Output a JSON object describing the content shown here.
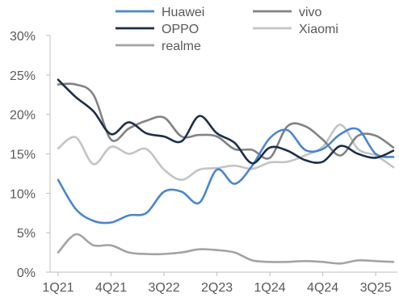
{
  "chart_data": {
    "type": "line",
    "title": "",
    "xlabel": "",
    "ylabel": "",
    "ylim": [
      0,
      30
    ],
    "yticks": [
      "0%",
      "5%",
      "10%",
      "15%",
      "20%",
      "25%",
      "30%"
    ],
    "ytick_values": [
      0,
      5,
      10,
      15,
      20,
      25,
      30
    ],
    "x": [
      "1Q21",
      "2Q21",
      "3Q21",
      "4Q21",
      "1Q22",
      "2Q22",
      "3Q22",
      "4Q22",
      "1Q23",
      "2Q23",
      "3Q23",
      "4Q23",
      "1Q24",
      "2Q24",
      "3Q24",
      "4Q24",
      "1Q25",
      "2Q25",
      "3Q25",
      "4Q25"
    ],
    "xtick_labels": [
      "1Q21",
      "4Q21",
      "3Q22",
      "2Q23",
      "1Q24",
      "4Q24",
      "3Q25"
    ],
    "grid": false,
    "legend_position": "top",
    "series": [
      {
        "name": "Huawei",
        "color": "#4a86cf",
        "values": [
          11.7,
          8.0,
          6.5,
          6.3,
          7.2,
          7.5,
          10.2,
          10.2,
          8.8,
          13.0,
          11.2,
          13.5,
          17.0,
          18.0,
          15.5,
          15.6,
          17.5,
          18.1,
          15.0,
          14.6
        ]
      },
      {
        "name": "vivo",
        "color": "#828282",
        "values": [
          23.8,
          23.8,
          22.5,
          16.8,
          18.2,
          19.2,
          19.6,
          17.2,
          17.4,
          17.2,
          15.6,
          15.5,
          14.5,
          18.5,
          18.5,
          16.8,
          14.8,
          17.3,
          17.3,
          15.8
        ]
      },
      {
        "name": "OPPO",
        "color": "#1b2e4b",
        "values": [
          24.4,
          22.2,
          20.4,
          17.5,
          19.0,
          17.6,
          17.2,
          16.6,
          19.8,
          17.6,
          16.4,
          13.8,
          15.8,
          15.4,
          14.2,
          14.0,
          16.0,
          15.0,
          14.5,
          15.4
        ]
      },
      {
        "name": "Xiaomi",
        "color": "#c4c4c4",
        "values": [
          15.7,
          17.1,
          13.7,
          15.9,
          15.0,
          15.6,
          13.0,
          11.7,
          13.0,
          13.2,
          13.5,
          13.1,
          13.9,
          14.0,
          14.8,
          15.9,
          18.7,
          15.6,
          14.8,
          13.3
        ]
      },
      {
        "name": "realme",
        "color": "#a3a3a3",
        "values": [
          2.5,
          4.8,
          3.4,
          3.4,
          2.5,
          2.3,
          2.3,
          2.5,
          2.9,
          2.8,
          2.5,
          1.5,
          1.3,
          1.3,
          1.4,
          1.3,
          1.1,
          1.5,
          1.4,
          1.3
        ]
      }
    ]
  }
}
